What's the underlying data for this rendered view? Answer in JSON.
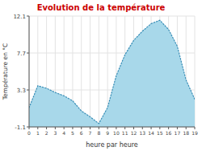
{
  "chart_data": {
    "type": "area",
    "title": "Evolution de la température",
    "x_label": "heure par heure",
    "y_label": "Température en °C",
    "x": [
      0,
      1,
      2,
      3,
      4,
      5,
      6,
      7,
      8,
      9,
      10,
      11,
      12,
      13,
      14,
      15,
      16,
      17,
      18,
      19
    ],
    "values": [
      1.2,
      3.8,
      3.5,
      3.0,
      2.6,
      2.0,
      0.8,
      0.1,
      -0.7,
      1.2,
      5.0,
      7.5,
      9.2,
      10.3,
      11.2,
      11.6,
      10.5,
      8.5,
      4.5,
      2.2
    ],
    "color": "#a8d8ea",
    "line_style": "dotted",
    "xlim": [
      0,
      19
    ],
    "ylim": [
      -1.1,
      12.1
    ],
    "xticks": [
      0,
      1,
      2,
      3,
      4,
      5,
      6,
      7,
      8,
      9,
      10,
      11,
      12,
      13,
      14,
      15,
      16,
      17,
      18,
      19
    ],
    "yticks": [
      -1.1,
      3.3,
      7.7,
      12.1
    ],
    "grid": true
  }
}
